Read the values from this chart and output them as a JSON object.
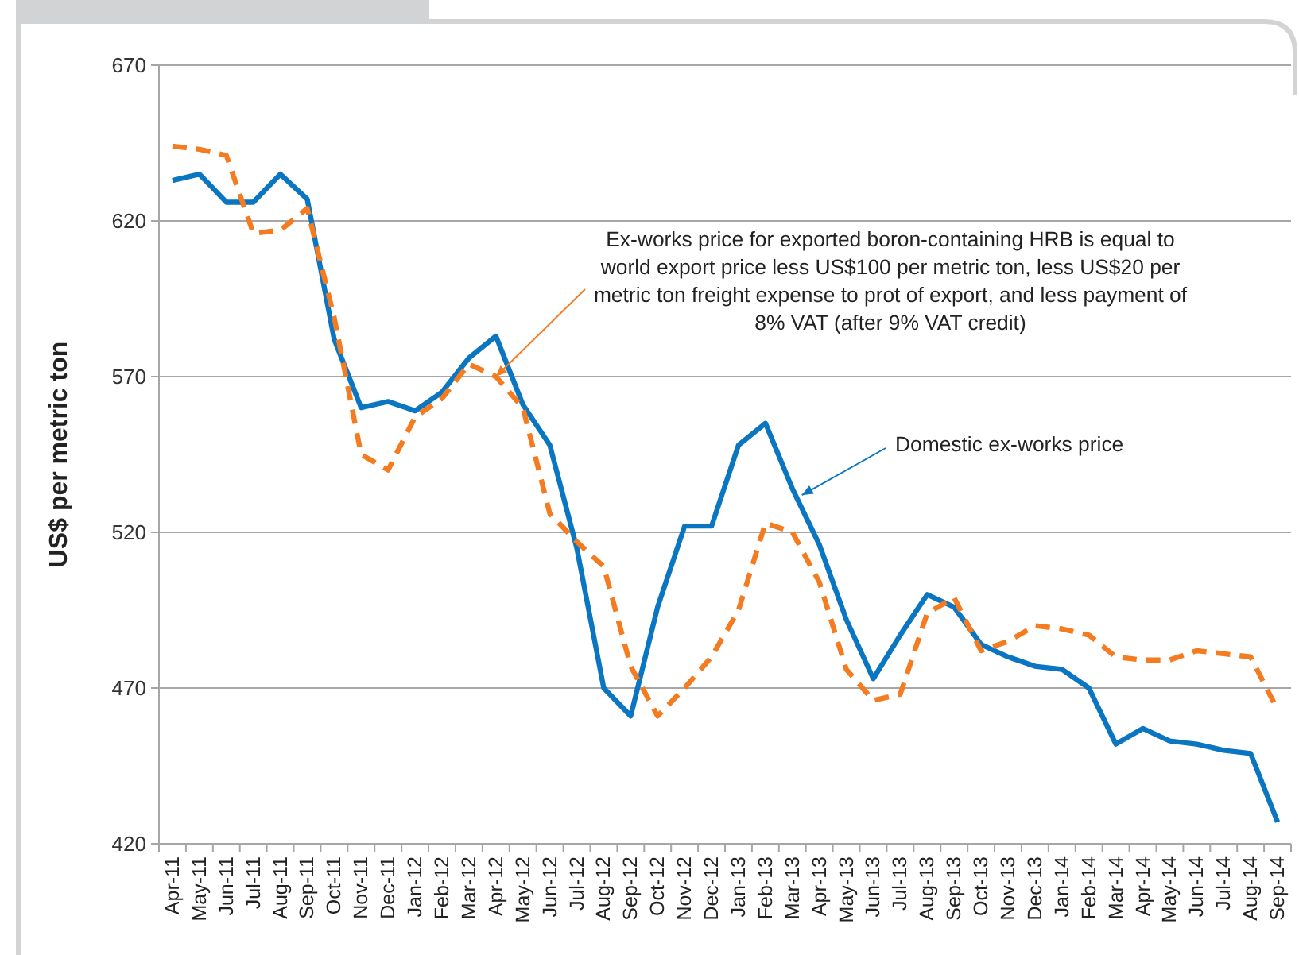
{
  "chart_data": {
    "type": "line",
    "ylabel": "US$ per metric ton",
    "categories": [
      "Apr-11",
      "May-11",
      "Jun-11",
      "Jul-11",
      "Aug-11",
      "Sep-11",
      "Oct-11",
      "Nov-11",
      "Dec-11",
      "Jan-12",
      "Feb-12",
      "Mar-12",
      "Apr-12",
      "May-12",
      "Jun-12",
      "Jul-12",
      "Aug-12",
      "Sep-12",
      "Oct-12",
      "Nov-12",
      "Dec-12",
      "Jan-13",
      "Feb-13",
      "Mar-13",
      "Apr-13",
      "May-13",
      "Jun-13",
      "Jul-13",
      "Aug-13",
      "Sep-13",
      "Oct-13",
      "Nov-13",
      "Dec-13",
      "Jan-14",
      "Feb-14",
      "Mar-14",
      "Apr-14",
      "May-14",
      "Jun-14",
      "Jul-14",
      "Aug-14",
      "Sep-14"
    ],
    "series": [
      {
        "color": "#0a76c2",
        "line_style": "solid",
        "values": [
          633,
          635,
          626,
          626,
          635,
          627,
          582,
          560,
          562,
          559,
          565,
          576,
          583,
          561,
          548,
          515,
          470,
          461,
          496,
          522,
          522,
          548,
          555,
          534,
          516,
          492,
          473,
          487,
          500,
          496,
          484,
          480,
          477,
          476,
          470,
          452,
          457,
          453,
          452,
          450,
          449,
          427
        ]
      },
      {
        "color": "#f47b20",
        "line_style": "dashed",
        "values": [
          644,
          643,
          641,
          616,
          617,
          624,
          589,
          545,
          540,
          557,
          563,
          574,
          570,
          560,
          526,
          517,
          509,
          477,
          461,
          470,
          480,
          495,
          523,
          520,
          504,
          476,
          466,
          468,
          494,
          499,
          482,
          485,
          490,
          489,
          487,
          480,
          479,
          479,
          482,
          481,
          480,
          463
        ]
      }
    ],
    "annotations": [
      {
        "text": "Ex-works price for exported boron-containing HRB is equal to world export price less US$100 per metric ton, less US$20 per metric ton freight expense to prot of export, and less payment of 8% VAT (after 9% VAT credit)",
        "x": "Apr-12",
        "y": 570
      },
      {
        "text": "Domestic ex-works price",
        "x": "Mar-13",
        "y": 534
      }
    ],
    "ylim": [
      420,
      670
    ],
    "yticks": [
      420,
      470,
      520,
      570,
      620,
      670
    ],
    "grid": "y",
    "legend": false,
    "marker": "none"
  }
}
